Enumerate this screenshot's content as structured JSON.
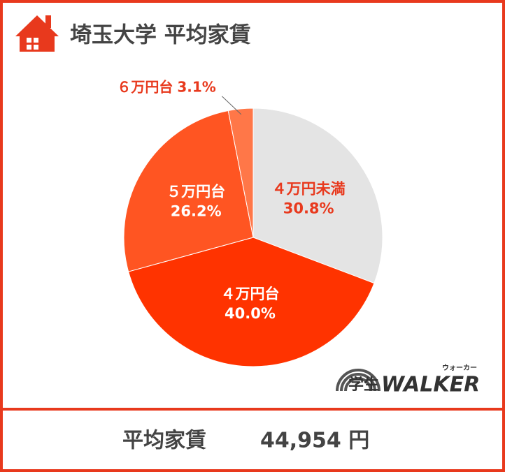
{
  "chart_data": {
    "type": "pie",
    "title": "埼玉大学 平均家賃",
    "categories": [
      "４万円未満",
      "４万円台",
      "５万円台",
      "６万円台"
    ],
    "values": [
      30.8,
      40.0,
      26.2,
      3.1
    ],
    "value_labels": [
      "30.8%",
      "40.0%",
      "26.2%",
      "3.1%"
    ],
    "colors": [
      "#e4e4e4",
      "#ff3300",
      "#ff5522",
      "#ff7748"
    ]
  },
  "logo": {
    "main": "学生",
    "brand": "WALKER",
    "ruby": "ウォーカー"
  },
  "footer": {
    "label": "平均家賃",
    "value": "44,954 円"
  }
}
